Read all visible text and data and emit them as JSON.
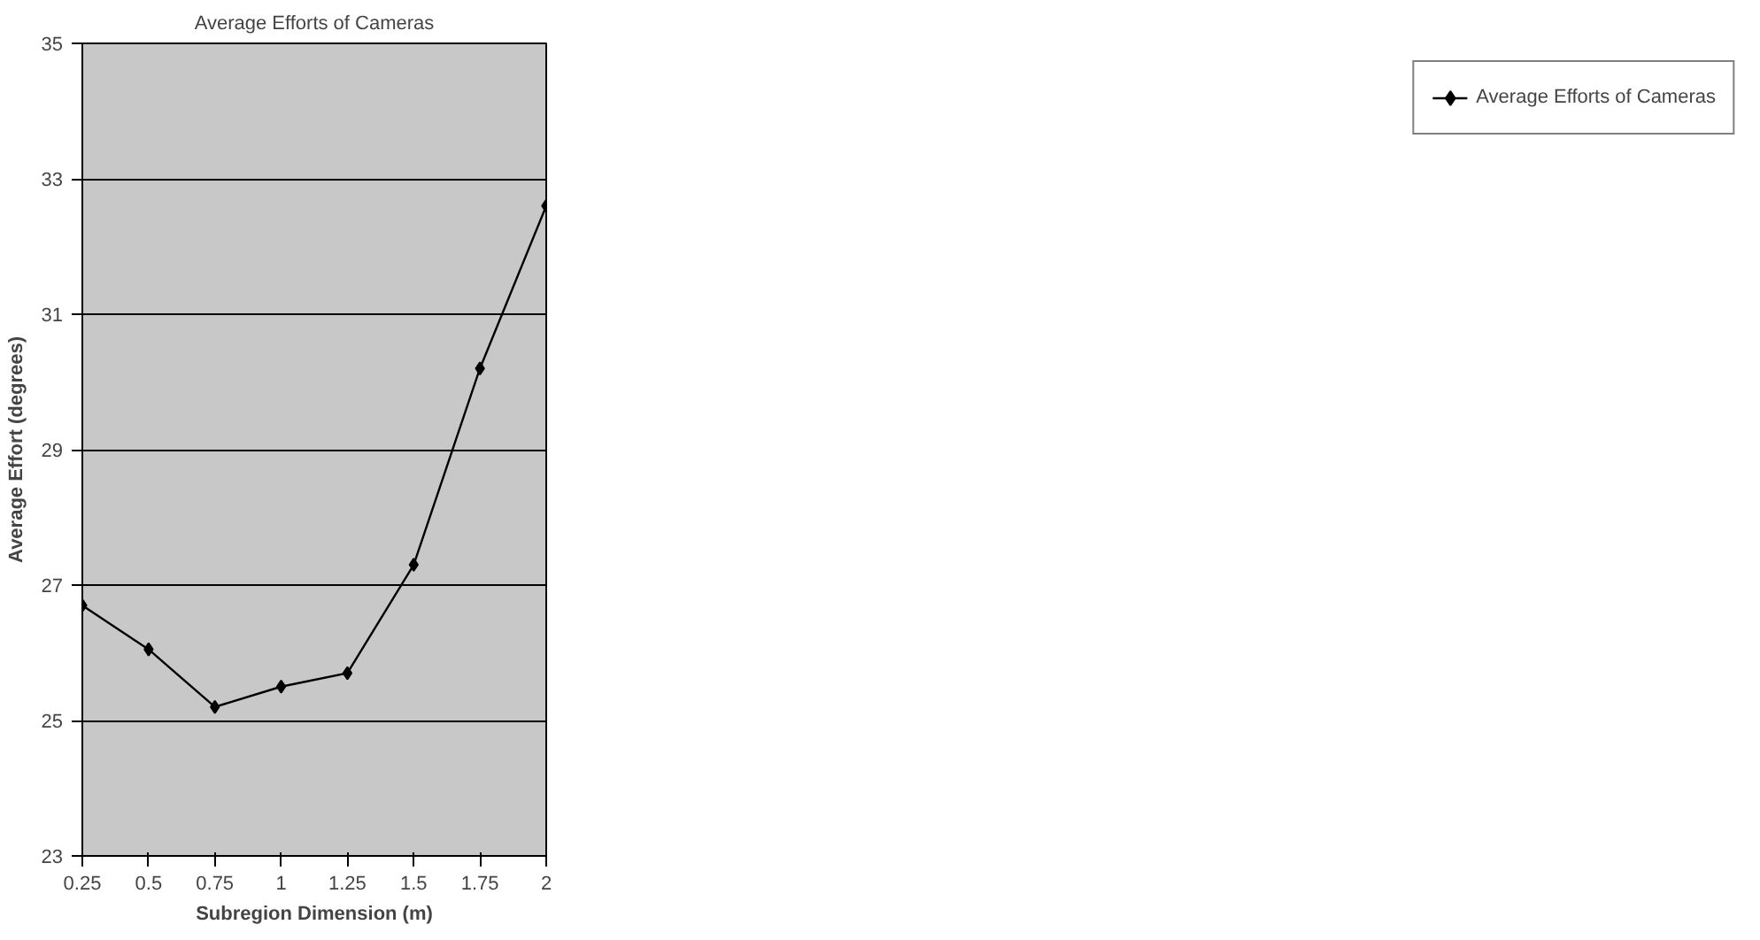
{
  "chart_data": {
    "type": "line",
    "title": "Average Efforts of Cameras",
    "xlabel": "Subregion Dimension (m)",
    "ylabel": "Average Effort (degrees)",
    "x": [
      0.25,
      0.5,
      0.75,
      1,
      1.25,
      1.5,
      1.75,
      2
    ],
    "series": [
      {
        "name": "Average Efforts of Cameras",
        "color": "#000000",
        "values": [
          26.7,
          26.05,
          25.2,
          25.5,
          25.7,
          27.3,
          30.2,
          32.6
        ]
      }
    ],
    "xlim": [
      0.25,
      2
    ],
    "xticks": [
      0.25,
      0.5,
      0.75,
      1,
      1.25,
      1.5,
      1.75,
      2
    ],
    "ylim": [
      23,
      35
    ],
    "yticks": [
      23,
      25,
      27,
      29,
      31,
      33,
      35
    ],
    "grid": "y",
    "legend": "right",
    "marker": "diamond",
    "line_style": "solid"
  }
}
